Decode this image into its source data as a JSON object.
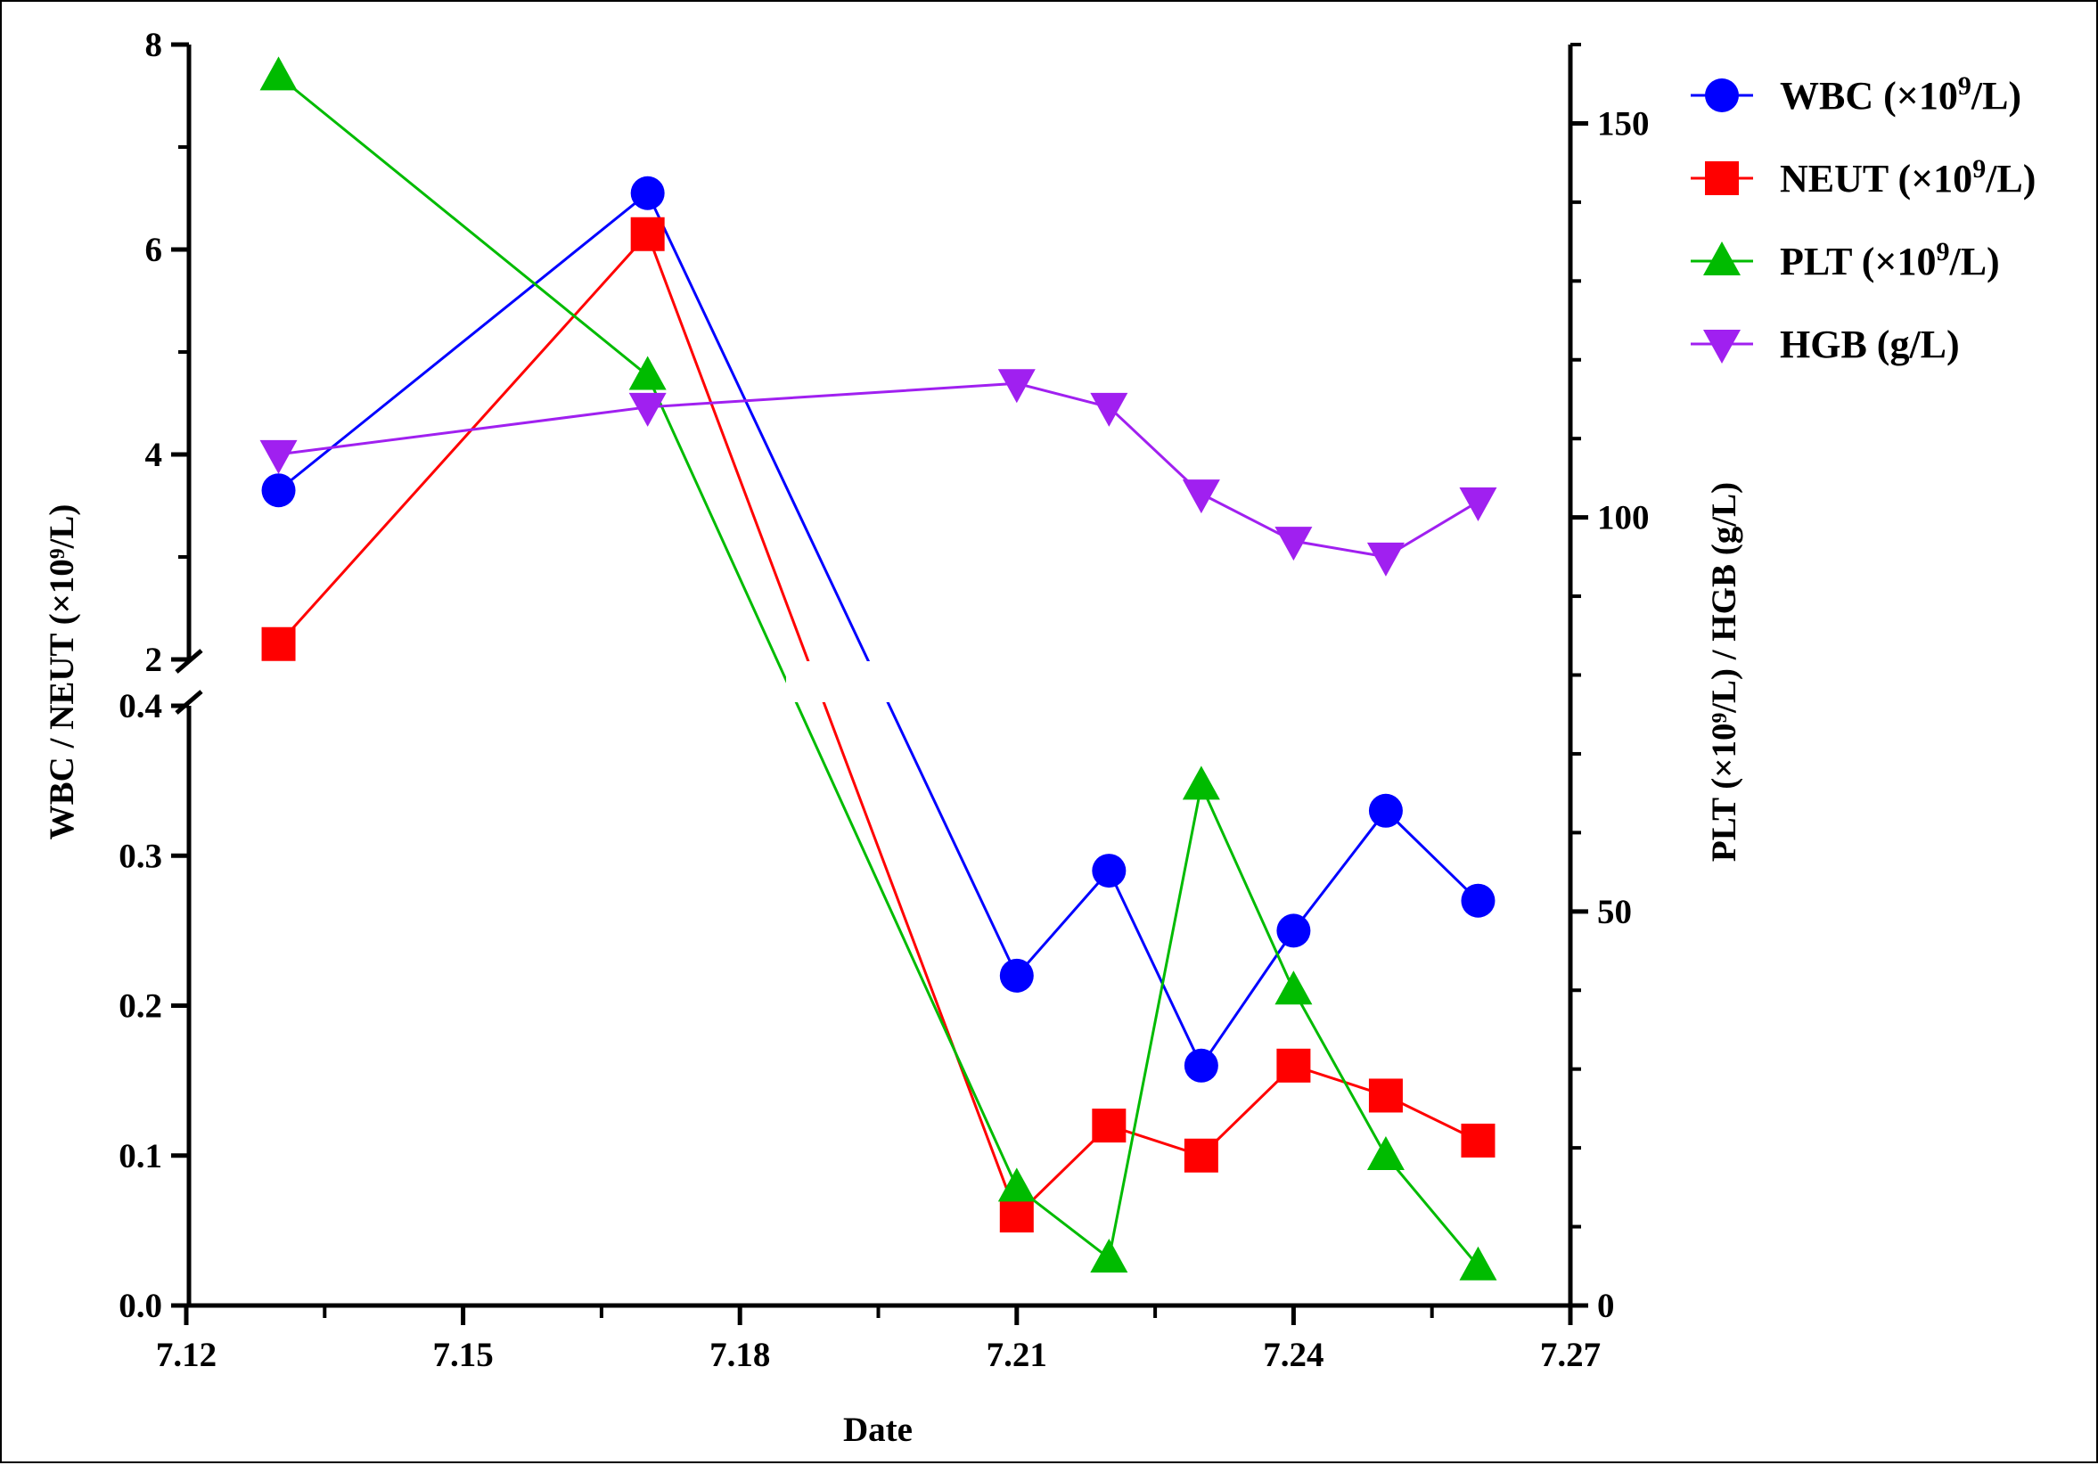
{
  "chart_data": {
    "type": "line",
    "xlabel": "Date",
    "ylabel_left": "WBC / NEUT  (×10⁹/L)",
    "ylabel_right": "PLT (×10⁹/L) / HGB  (g/L)",
    "x_ticks": [
      "7.12",
      "7.15",
      "7.18",
      "7.21",
      "7.24",
      "7.27"
    ],
    "xlim": [
      7.12,
      7.27
    ],
    "left_axis": {
      "broken": true,
      "lower_range": [
        0,
        0.4
      ],
      "upper_range": [
        2,
        8
      ],
      "lower_ticks": [
        "0.0",
        "0.1",
        "0.2",
        "0.3",
        "0.4"
      ],
      "upper_ticks": [
        "2",
        "4",
        "6",
        "8"
      ]
    },
    "right_axis": {
      "ylim": [
        0,
        160
      ],
      "ticks": [
        "0",
        "50",
        "100",
        "150"
      ]
    },
    "series": [
      {
        "name": "WBC (×10⁹/L)",
        "axis": "left",
        "marker": "circle",
        "color": "#0000ff",
        "x": [
          7.13,
          7.17,
          7.21,
          7.22,
          7.23,
          7.24,
          7.25,
          7.26
        ],
        "y": [
          3.65,
          6.55,
          0.22,
          0.29,
          0.16,
          0.25,
          0.33,
          0.27
        ]
      },
      {
        "name": "NEUT (×10⁹/L)",
        "axis": "left",
        "marker": "square",
        "color": "#ff0000",
        "x": [
          7.13,
          7.17,
          7.21,
          7.22,
          7.23,
          7.24,
          7.25,
          7.26
        ],
        "y": [
          2.15,
          6.15,
          0.06,
          0.12,
          0.1,
          0.16,
          0.14,
          0.11
        ]
      },
      {
        "name": "PLT (×10⁹/L)",
        "axis": "right",
        "marker": "triangle-up",
        "color": "#00bb00",
        "x": [
          7.13,
          7.17,
          7.21,
          7.22,
          7.23,
          7.24,
          7.25,
          7.26
        ],
        "y": [
          156,
          118,
          15,
          6,
          66,
          40,
          19,
          5
        ]
      },
      {
        "name": "HGB (g/L)",
        "axis": "right",
        "marker": "triangle-down",
        "color": "#a020f0",
        "x": [
          7.13,
          7.17,
          7.21,
          7.22,
          7.23,
          7.24,
          7.25,
          7.26
        ],
        "y": [
          108,
          114,
          117,
          114,
          103,
          97,
          95,
          102
        ]
      }
    ],
    "legend": {
      "placement": "top-right",
      "entries": [
        {
          "base": "WBC (×10",
          "sup": "9",
          "tail": "/L)"
        },
        {
          "base": "NEUT (×10",
          "sup": "9",
          "tail": "/L)"
        },
        {
          "base": "PLT (×10",
          "sup": "9",
          "tail": "/L)"
        },
        {
          "base": "HGB (g/L)",
          "sup": "",
          "tail": ""
        }
      ]
    }
  }
}
